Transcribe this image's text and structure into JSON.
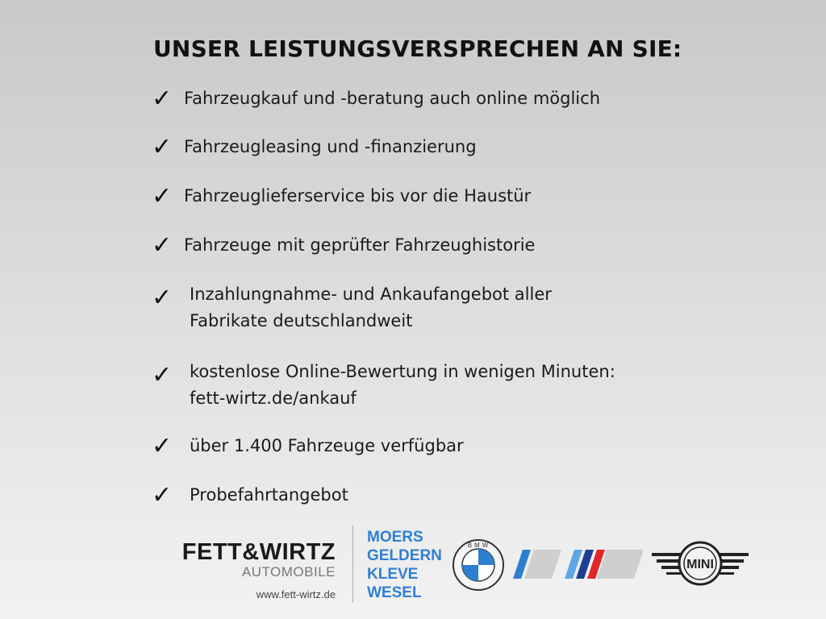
{
  "title": "UNSER LEISTUNGSVERSPRECHEN AN SIE:",
  "items": [
    {
      "icon": "check-icon",
      "lines": [
        "Fahrzeugkauf und -beratung auch online möglich"
      ]
    },
    {
      "icon": "check-icon",
      "lines": [
        "Fahrzeugleasing und -finanzierung"
      ]
    },
    {
      "icon": "check-icon",
      "lines": [
        "Fahrzeuglieferservice bis vor die Haustür"
      ]
    },
    {
      "icon": "check-icon",
      "lines": [
        "Fahrzeuge mit geprüfter Fahrzeughistorie"
      ]
    },
    {
      "icon": "check-icon",
      "lines": [
        "Inzahlungnahme- und Ankaufangebot aller",
        "Fabrikate deutschlandweit"
      ]
    },
    {
      "icon": "check-icon",
      "lines": [
        "kostenlose Online-Bewertung in wenigen Minuten:",
        "fett-wirtz.de/ankauf"
      ]
    },
    {
      "icon": "check-icon",
      "lines": [
        "über 1.400 Fahrzeuge verfügbar"
      ]
    },
    {
      "icon": "check-icon",
      "lines": [
        "Probefahrtangebot"
      ]
    }
  ],
  "footer": {
    "logo_main": "FETT&WIRTZ",
    "logo_sub": "AUTOMOBILE",
    "url": "www.fett-wirtz.de",
    "cities": [
      "MOERS",
      "GELDERN",
      "KLEVE",
      "WESEL"
    ],
    "brands": {
      "bmw": "BMW",
      "mini": "MINI"
    },
    "colors": {
      "city_blue": "#2f7fd6",
      "bmw_blue": "#2d7fd0",
      "m_red": "#e0282a",
      "m_dark_blue": "#1c3f94"
    }
  }
}
